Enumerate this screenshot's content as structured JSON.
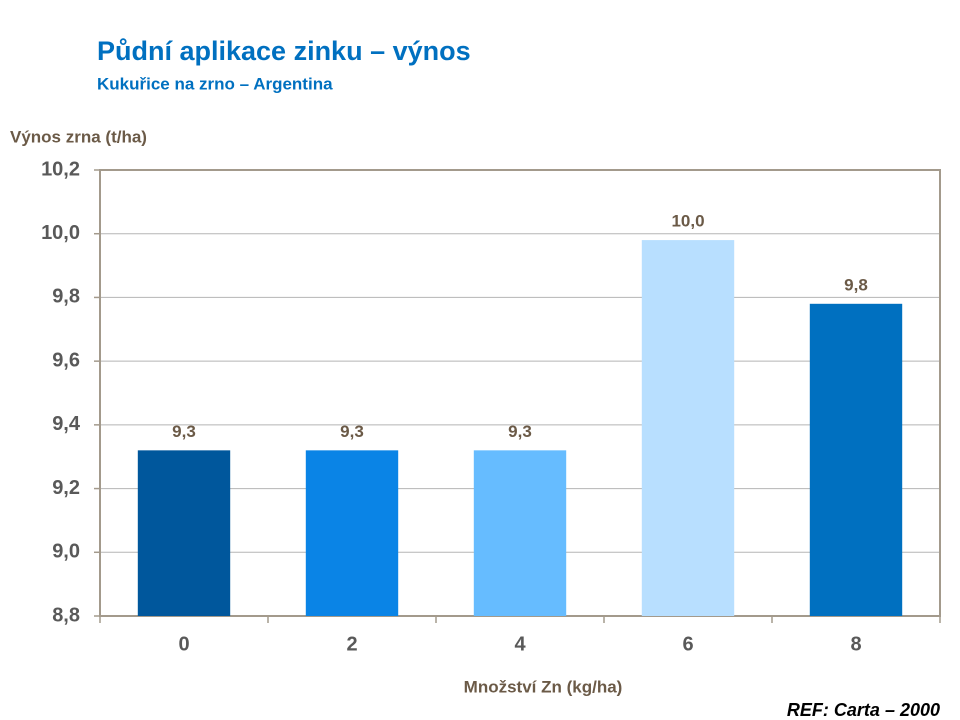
{
  "chart_data": {
    "type": "bar",
    "title": "Půdní aplikace zinku – výnos",
    "subtitle": "Kukuřice na zrno – Argentina",
    "y_label": "Výnos zrna (t/ha)",
    "x_label": "Množství Zn (kg/ha)",
    "source": "REF: Carta – 2000",
    "categories": [
      "0",
      "2",
      "4",
      "6",
      "8"
    ],
    "values": [
      9.32,
      9.32,
      9.32,
      9.98,
      9.78
    ],
    "value_labels": [
      "9,3",
      "9,3",
      "9,3",
      "10,0",
      "9,8"
    ],
    "colors": [
      "#00579c",
      "#0a84e6",
      "#66bcff",
      "#b8dfff",
      "#0070c0"
    ],
    "ylim": [
      8.8,
      10.2
    ],
    "yticks": [
      {
        "value": 8.8,
        "label": "8,8"
      },
      {
        "value": 9.0,
        "label": "9,0"
      },
      {
        "value": 9.2,
        "label": "9,2"
      },
      {
        "value": 9.4,
        "label": "9,4"
      },
      {
        "value": 9.6,
        "label": "9,6"
      },
      {
        "value": 9.8,
        "label": "9,8"
      },
      {
        "value": 10.0,
        "label": "10,0"
      },
      {
        "value": 10.2,
        "label": "10,2"
      }
    ],
    "grid": true
  }
}
